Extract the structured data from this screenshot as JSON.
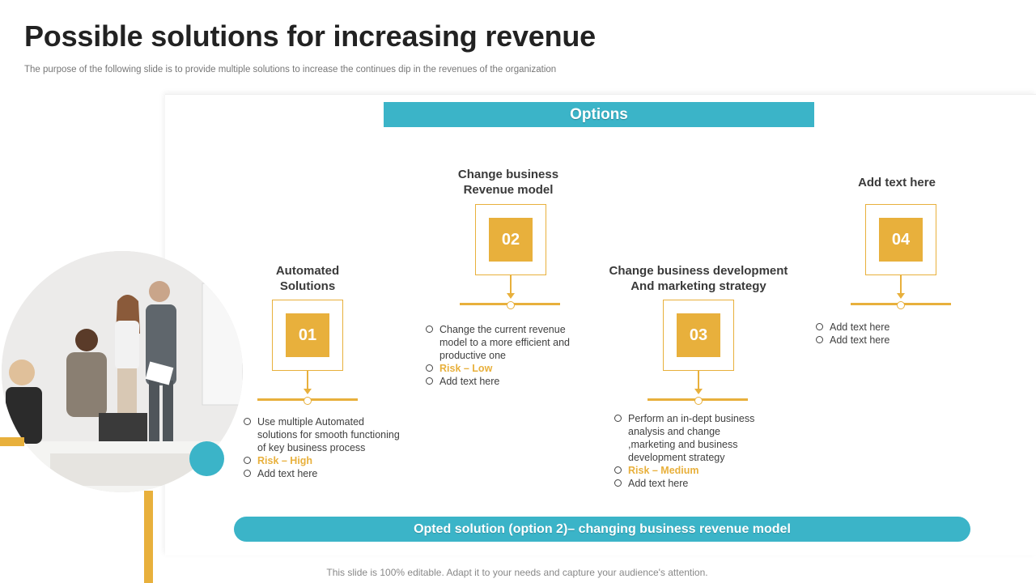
{
  "slide": {
    "title": "Possible solutions for increasing revenue",
    "subtitle": "The purpose of the following slide is to provide multiple solutions to increase the continues dip in the revenues of the organization",
    "options_label": "Options",
    "opted_solution": "Opted solution (option 2)– changing business revenue model",
    "footer": "This slide is 100% editable. Adapt it to your needs and capture your audience's attention."
  },
  "colors": {
    "accent_yellow": "#e8b03c",
    "accent_teal": "#3bb4c8"
  },
  "photo": {
    "icon": "team-meeting-photo"
  },
  "options": [
    {
      "number": "01",
      "heading": [
        "Automated",
        "Solutions"
      ],
      "bullets": [
        "Use multiple Automated",
        "solutions for smooth functioning",
        "of key business process"
      ],
      "risk": "Risk – High",
      "extra": "Add text here"
    },
    {
      "number": "02",
      "heading": [
        "Change business",
        "Revenue model"
      ],
      "bullets": [
        "Change the current revenue",
        "model to a more efficient and",
        "productive one"
      ],
      "risk": "Risk – Low",
      "extra": "Add text here"
    },
    {
      "number": "03",
      "heading": [
        "Change business development",
        "And marketing strategy"
      ],
      "bullets": [
        "Perform an in-dept business",
        "analysis and change",
        ",marketing and business",
        "development strategy"
      ],
      "risk": "Risk – Medium",
      "extra": "Add text here"
    },
    {
      "number": "04",
      "heading": [
        "Add text here"
      ],
      "bullets": [
        "Add text here"
      ],
      "extra": "Add text here"
    }
  ]
}
